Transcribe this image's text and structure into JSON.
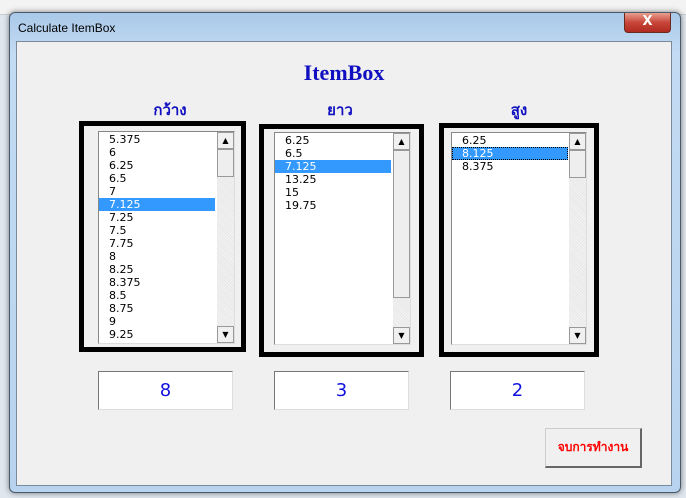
{
  "window": {
    "title": "Calculate ItemBox",
    "close_label": "X"
  },
  "heading": "ItemBox",
  "columns": [
    {
      "label": "กว้าง",
      "items": [
        "5.375",
        "6",
        "6.25",
        "6.5",
        "7",
        "7.125",
        "7.25",
        "7.5",
        "7.75",
        "8",
        "8.25",
        "8.375",
        "8.5",
        "8.75",
        "9",
        "9.25"
      ],
      "selected": "7.125",
      "result": "8"
    },
    {
      "label": "ยาว",
      "items": [
        "6.25",
        "6.5",
        "7.125",
        "13.25",
        "15",
        "19.75"
      ],
      "selected": "7.125",
      "result": "3"
    },
    {
      "label": "สูง",
      "items": [
        "6.25",
        "8.125",
        "8.375"
      ],
      "selected": "8.125",
      "result": "2"
    }
  ],
  "exit_button": "จบการทำงาน",
  "colors": {
    "heading": "#1010c0",
    "selection": "#3399ff",
    "exit_text": "#ff0000",
    "result_text": "#1010e0"
  }
}
